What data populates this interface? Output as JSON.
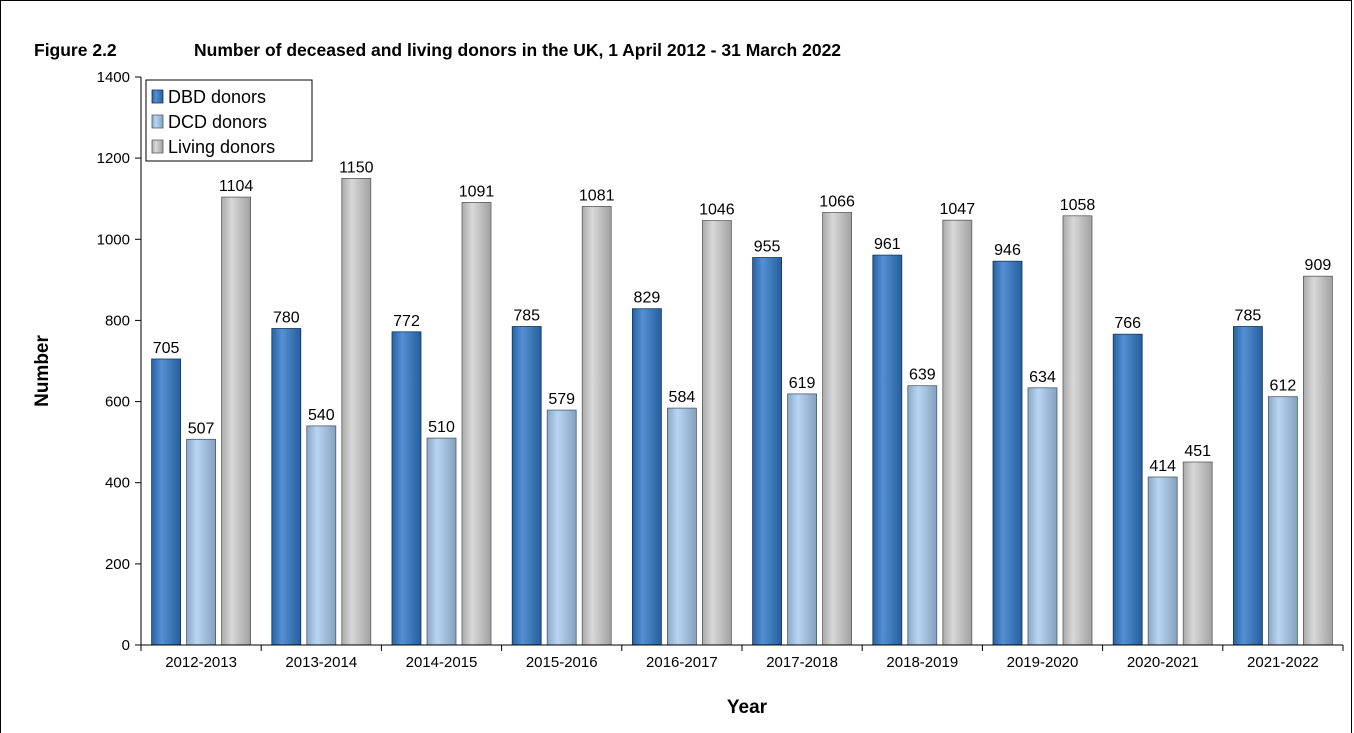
{
  "figure": {
    "number": "Figure 2.2",
    "title": "Number of deceased and living donors in the UK, 1 April 2012 - 31 March 2022"
  },
  "chart_data": {
    "type": "bar",
    "categories": [
      "2012-2013",
      "2013-2014",
      "2014-2015",
      "2015-2016",
      "2016-2017",
      "2017-2018",
      "2018-2019",
      "2019-2020",
      "2020-2021",
      "2021-2022"
    ],
    "series": [
      {
        "name": "DBD donors",
        "color": "#2f78c8",
        "values": [
          705,
          780,
          772,
          785,
          829,
          955,
          961,
          946,
          766,
          785
        ]
      },
      {
        "name": "DCD donors",
        "color": "#a9cdf2",
        "values": [
          507,
          540,
          510,
          579,
          584,
          619,
          639,
          634,
          414,
          612
        ]
      },
      {
        "name": "Living donors",
        "color": "#cfcfcf",
        "values": [
          1104,
          1150,
          1091,
          1081,
          1046,
          1066,
          1047,
          1058,
          451,
          909
        ]
      }
    ],
    "xlabel": "Year",
    "ylabel": "Number",
    "ylim": [
      0,
      1400
    ],
    "yticks": [
      0,
      200,
      400,
      600,
      800,
      1000,
      1200,
      1400
    ],
    "grid": false,
    "legend_position": "top-left"
  }
}
